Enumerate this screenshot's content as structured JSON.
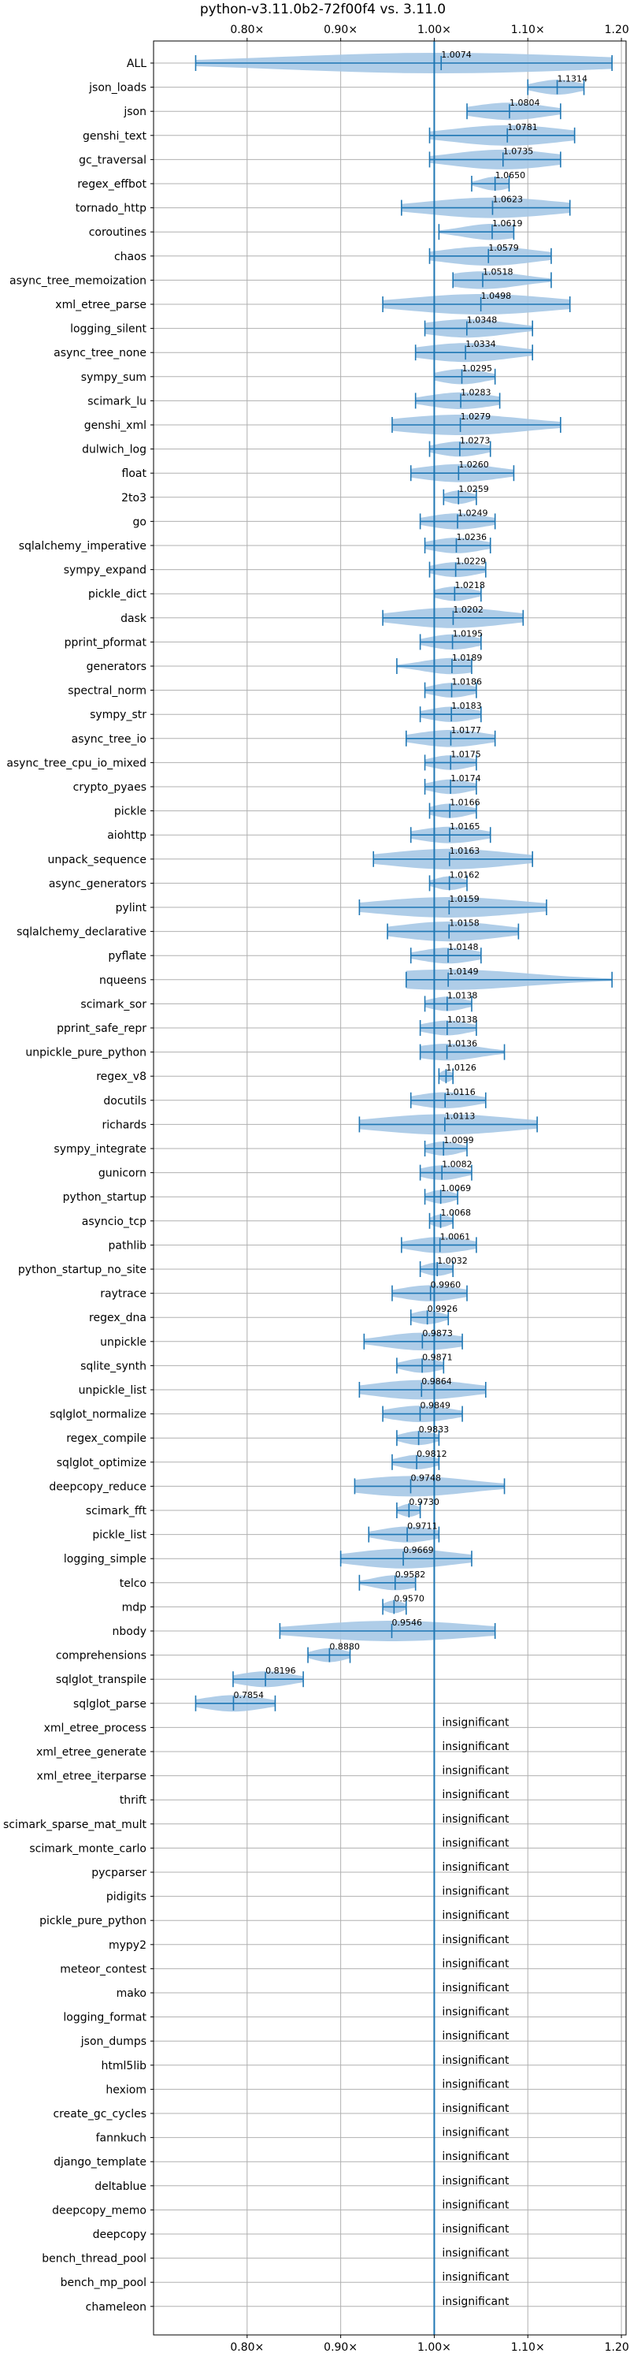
{
  "chart_data": {
    "type": "violin",
    "title": "python-v3.11.0b2-72f00f4 vs. 3.11.0",
    "xlabel": "",
    "ylabel": "",
    "xlim": [
      0.7,
      1.205
    ],
    "grid": true,
    "baseline": 1.0,
    "x_ticks": [
      {
        "value": 0.8,
        "label": "0.80×"
      },
      {
        "value": 0.9,
        "label": "0.90×"
      },
      {
        "value": 1.0,
        "label": "1.00×"
      },
      {
        "value": 1.1,
        "label": "1.10×"
      },
      {
        "value": 1.2,
        "label": "1.20×"
      }
    ],
    "insignificant_label": "insignificant",
    "benchmarks": [
      {
        "name": "ALL",
        "value": 1.0074,
        "label": "1.0074",
        "min": 0.745,
        "max": 1.19
      },
      {
        "name": "json_loads",
        "value": 1.1314,
        "label": "1.1314",
        "min": 1.1,
        "max": 1.16
      },
      {
        "name": "json",
        "value": 1.0804,
        "label": "1.0804",
        "min": 1.035,
        "max": 1.135
      },
      {
        "name": "genshi_text",
        "value": 1.0781,
        "label": "1.0781",
        "min": 0.995,
        "max": 1.15
      },
      {
        "name": "gc_traversal",
        "value": 1.0735,
        "label": "1.0735",
        "min": 0.995,
        "max": 1.135
      },
      {
        "name": "regex_effbot",
        "value": 1.065,
        "label": "1.0650",
        "min": 1.04,
        "max": 1.08
      },
      {
        "name": "tornado_http",
        "value": 1.0623,
        "label": "1.0623",
        "min": 0.965,
        "max": 1.145
      },
      {
        "name": "coroutines",
        "value": 1.0619,
        "label": "1.0619",
        "min": 1.005,
        "max": 1.085
      },
      {
        "name": "chaos",
        "value": 1.0579,
        "label": "1.0579",
        "min": 0.995,
        "max": 1.125
      },
      {
        "name": "async_tree_memoization",
        "value": 1.0518,
        "label": "1.0518",
        "min": 1.02,
        "max": 1.125
      },
      {
        "name": "xml_etree_parse",
        "value": 1.0498,
        "label": "1.0498",
        "min": 0.945,
        "max": 1.145
      },
      {
        "name": "logging_silent",
        "value": 1.0348,
        "label": "1.0348",
        "min": 0.99,
        "max": 1.105
      },
      {
        "name": "async_tree_none",
        "value": 1.0334,
        "label": "1.0334",
        "min": 0.98,
        "max": 1.105
      },
      {
        "name": "sympy_sum",
        "value": 1.0295,
        "label": "1.0295",
        "min": 1.0,
        "max": 1.065
      },
      {
        "name": "scimark_lu",
        "value": 1.0283,
        "label": "1.0283",
        "min": 0.98,
        "max": 1.07
      },
      {
        "name": "genshi_xml",
        "value": 1.0279,
        "label": "1.0279",
        "min": 0.955,
        "max": 1.135
      },
      {
        "name": "dulwich_log",
        "value": 1.0273,
        "label": "1.0273",
        "min": 0.995,
        "max": 1.06
      },
      {
        "name": "float",
        "value": 1.026,
        "label": "1.0260",
        "min": 0.975,
        "max": 1.085
      },
      {
        "name": "2to3",
        "value": 1.0259,
        "label": "1.0259",
        "min": 1.01,
        "max": 1.045
      },
      {
        "name": "go",
        "value": 1.0249,
        "label": "1.0249",
        "min": 0.985,
        "max": 1.065
      },
      {
        "name": "sqlalchemy_imperative",
        "value": 1.0236,
        "label": "1.0236",
        "min": 0.99,
        "max": 1.06
      },
      {
        "name": "sympy_expand",
        "value": 1.0229,
        "label": "1.0229",
        "min": 0.995,
        "max": 1.055
      },
      {
        "name": "pickle_dict",
        "value": 1.0218,
        "label": "1.0218",
        "min": 1.0,
        "max": 1.05
      },
      {
        "name": "dask",
        "value": 1.0202,
        "label": "1.0202",
        "min": 0.945,
        "max": 1.095
      },
      {
        "name": "pprint_pformat",
        "value": 1.0195,
        "label": "1.0195",
        "min": 0.985,
        "max": 1.05
      },
      {
        "name": "generators",
        "value": 1.0189,
        "label": "1.0189",
        "min": 0.96,
        "max": 1.04
      },
      {
        "name": "spectral_norm",
        "value": 1.0186,
        "label": "1.0186",
        "min": 0.99,
        "max": 1.045
      },
      {
        "name": "sympy_str",
        "value": 1.0183,
        "label": "1.0183",
        "min": 0.985,
        "max": 1.05
      },
      {
        "name": "async_tree_io",
        "value": 1.0177,
        "label": "1.0177",
        "min": 0.97,
        "max": 1.065
      },
      {
        "name": "async_tree_cpu_io_mixed",
        "value": 1.0175,
        "label": "1.0175",
        "min": 0.99,
        "max": 1.045
      },
      {
        "name": "crypto_pyaes",
        "value": 1.0174,
        "label": "1.0174",
        "min": 0.99,
        "max": 1.045
      },
      {
        "name": "pickle",
        "value": 1.0166,
        "label": "1.0166",
        "min": 0.995,
        "max": 1.045
      },
      {
        "name": "aiohttp",
        "value": 1.0165,
        "label": "1.0165",
        "min": 0.975,
        "max": 1.06
      },
      {
        "name": "unpack_sequence",
        "value": 1.0163,
        "label": "1.0163",
        "min": 0.935,
        "max": 1.105
      },
      {
        "name": "async_generators",
        "value": 1.0162,
        "label": "1.0162",
        "min": 0.995,
        "max": 1.035
      },
      {
        "name": "pylint",
        "value": 1.0159,
        "label": "1.0159",
        "min": 0.92,
        "max": 1.12
      },
      {
        "name": "sqlalchemy_declarative",
        "value": 1.0158,
        "label": "1.0158",
        "min": 0.95,
        "max": 1.09
      },
      {
        "name": "pyflate",
        "value": 1.0148,
        "label": "1.0148",
        "min": 0.975,
        "max": 1.05
      },
      {
        "name": "nqueens",
        "value": 1.0149,
        "label": "1.0149",
        "min": 0.97,
        "max": 1.19
      },
      {
        "name": "scimark_sor",
        "value": 1.0138,
        "label": "1.0138",
        "min": 0.99,
        "max": 1.04
      },
      {
        "name": "pprint_safe_repr",
        "value": 1.0138,
        "label": "1.0138",
        "min": 0.985,
        "max": 1.045
      },
      {
        "name": "unpickle_pure_python",
        "value": 1.0136,
        "label": "1.0136",
        "min": 0.985,
        "max": 1.075
      },
      {
        "name": "regex_v8",
        "value": 1.0126,
        "label": "1.0126",
        "min": 1.005,
        "max": 1.02
      },
      {
        "name": "docutils",
        "value": 1.0116,
        "label": "1.0116",
        "min": 0.975,
        "max": 1.055
      },
      {
        "name": "richards",
        "value": 1.0113,
        "label": "1.0113",
        "min": 0.92,
        "max": 1.11
      },
      {
        "name": "sympy_integrate",
        "value": 1.0099,
        "label": "1.0099",
        "min": 0.99,
        "max": 1.035
      },
      {
        "name": "gunicorn",
        "value": 1.0082,
        "label": "1.0082",
        "min": 0.985,
        "max": 1.04
      },
      {
        "name": "python_startup",
        "value": 1.0069,
        "label": "1.0069",
        "min": 0.99,
        "max": 1.025
      },
      {
        "name": "asyncio_tcp",
        "value": 1.0068,
        "label": "1.0068",
        "min": 0.995,
        "max": 1.02
      },
      {
        "name": "pathlib",
        "value": 1.0061,
        "label": "1.0061",
        "min": 0.965,
        "max": 1.045
      },
      {
        "name": "python_startup_no_site",
        "value": 1.0032,
        "label": "1.0032",
        "min": 0.985,
        "max": 1.02
      },
      {
        "name": "raytrace",
        "value": 0.996,
        "label": "0.9960",
        "min": 0.955,
        "max": 1.035
      },
      {
        "name": "regex_dna",
        "value": 0.9926,
        "label": "0.9926",
        "min": 0.975,
        "max": 1.015
      },
      {
        "name": "unpickle",
        "value": 0.9873,
        "label": "0.9873",
        "min": 0.925,
        "max": 1.03
      },
      {
        "name": "sqlite_synth",
        "value": 0.9871,
        "label": "0.9871",
        "min": 0.96,
        "max": 1.01
      },
      {
        "name": "unpickle_list",
        "value": 0.9864,
        "label": "0.9864",
        "min": 0.92,
        "max": 1.055
      },
      {
        "name": "sqlglot_normalize",
        "value": 0.9849,
        "label": "0.9849",
        "min": 0.945,
        "max": 1.03
      },
      {
        "name": "regex_compile",
        "value": 0.9833,
        "label": "0.9833",
        "min": 0.96,
        "max": 1.005
      },
      {
        "name": "sqlglot_optimize",
        "value": 0.9812,
        "label": "0.9812",
        "min": 0.955,
        "max": 1.005
      },
      {
        "name": "deepcopy_reduce",
        "value": 0.9748,
        "label": "0.9748",
        "min": 0.915,
        "max": 1.075
      },
      {
        "name": "scimark_fft",
        "value": 0.973,
        "label": "0.9730",
        "min": 0.96,
        "max": 0.985
      },
      {
        "name": "pickle_list",
        "value": 0.9711,
        "label": "0.9711",
        "min": 0.93,
        "max": 1.005
      },
      {
        "name": "logging_simple",
        "value": 0.9669,
        "label": "0.9669",
        "min": 0.9,
        "max": 1.04
      },
      {
        "name": "telco",
        "value": 0.9582,
        "label": "0.9582",
        "min": 0.92,
        "max": 0.98
      },
      {
        "name": "mdp",
        "value": 0.957,
        "label": "0.9570",
        "min": 0.945,
        "max": 0.97
      },
      {
        "name": "nbody",
        "value": 0.9546,
        "label": "0.9546",
        "min": 0.835,
        "max": 1.065
      },
      {
        "name": "comprehensions",
        "value": 0.888,
        "label": "0.8880",
        "min": 0.865,
        "max": 0.91
      },
      {
        "name": "sqlglot_transpile",
        "value": 0.8196,
        "label": "0.8196",
        "min": 0.785,
        "max": 0.86
      },
      {
        "name": "sqlglot_parse",
        "value": 0.7854,
        "label": "0.7854",
        "min": 0.745,
        "max": 0.83
      },
      {
        "name": "xml_etree_process",
        "value": null
      },
      {
        "name": "xml_etree_generate",
        "value": null
      },
      {
        "name": "xml_etree_iterparse",
        "value": null
      },
      {
        "name": "thrift",
        "value": null
      },
      {
        "name": "scimark_sparse_mat_mult",
        "value": null
      },
      {
        "name": "scimark_monte_carlo",
        "value": null
      },
      {
        "name": "pycparser",
        "value": null
      },
      {
        "name": "pidigits",
        "value": null
      },
      {
        "name": "pickle_pure_python",
        "value": null
      },
      {
        "name": "mypy2",
        "value": null
      },
      {
        "name": "meteor_contest",
        "value": null
      },
      {
        "name": "mako",
        "value": null
      },
      {
        "name": "logging_format",
        "value": null
      },
      {
        "name": "json_dumps",
        "value": null
      },
      {
        "name": "html5lib",
        "value": null
      },
      {
        "name": "hexiom",
        "value": null
      },
      {
        "name": "create_gc_cycles",
        "value": null
      },
      {
        "name": "fannkuch",
        "value": null
      },
      {
        "name": "django_template",
        "value": null
      },
      {
        "name": "deltablue",
        "value": null
      },
      {
        "name": "deepcopy_memo",
        "value": null
      },
      {
        "name": "deepcopy",
        "value": null
      },
      {
        "name": "bench_thread_pool",
        "value": null
      },
      {
        "name": "bench_mp_pool",
        "value": null
      },
      {
        "name": "chameleon",
        "value": null
      }
    ]
  },
  "colors": {
    "violin_fill": "#a6c8e6",
    "line": "#1f77b4",
    "grid": "#b0b0b0",
    "text": "#000000"
  }
}
